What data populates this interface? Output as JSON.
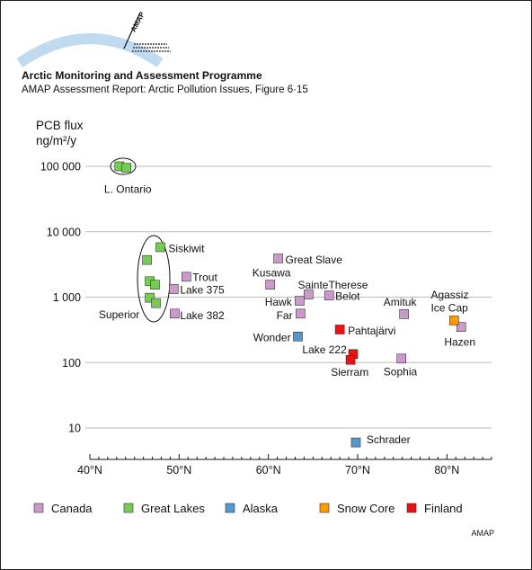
{
  "header": {
    "title": "Arctic Monitoring and Assessment Programme",
    "subtitle": "AMAP Assessment Report: Arctic Pollution Issues, Figure 6·15",
    "logo_text": "AMAP"
  },
  "footer": {
    "credit": "AMAP"
  },
  "chart_data": {
    "type": "scatter",
    "title": "",
    "ylabel_line1": "PCB flux",
    "ylabel_line2": "ng/m²/y",
    "xlabel": "",
    "x_scale": "linear",
    "y_scale": "log",
    "xlim": [
      40,
      85
    ],
    "ylim": [
      5,
      100000
    ],
    "grid": "horizontal",
    "legend_position": "bottom",
    "x_ticks": [
      {
        "v": 40,
        "label": "40°N"
      },
      {
        "v": 50,
        "label": "50°N"
      },
      {
        "v": 60,
        "label": "60°N"
      },
      {
        "v": 70,
        "label": "70°N"
      },
      {
        "v": 80,
        "label": "80°N"
      }
    ],
    "y_ticks": [
      {
        "v": 10,
        "label": "10"
      },
      {
        "v": 100,
        "label": "100"
      },
      {
        "v": 1000,
        "label": "1 000"
      },
      {
        "v": 10000,
        "label": "10 000"
      },
      {
        "v": 100000,
        "label": "100 000"
      }
    ],
    "legend": [
      {
        "key": "canada",
        "label": "Canada"
      },
      {
        "key": "greatlakes",
        "label": "Great Lakes"
      },
      {
        "key": "alaska",
        "label": "Alaska"
      },
      {
        "key": "snowcore",
        "label": "Snow Core"
      },
      {
        "key": "finland",
        "label": "Finland"
      }
    ],
    "colors": {
      "canada": "#cc99cc",
      "greatlakes": "#77cc55",
      "alaska": "#5599cc",
      "snowcore": "#ff9900",
      "finland": "#ee1111"
    },
    "series": [
      {
        "key": "greatlakes",
        "points": [
          {
            "x": 43.3,
            "y": 100000
          },
          {
            "x": 44.1,
            "y": 95000
          },
          {
            "x": 47.9,
            "y": 5800
          },
          {
            "x": 46.4,
            "y": 3700
          },
          {
            "x": 46.7,
            "y": 1750
          },
          {
            "x": 47.3,
            "y": 1550
          },
          {
            "x": 46.7,
            "y": 980
          },
          {
            "x": 47.4,
            "y": 810
          }
        ]
      },
      {
        "key": "canada",
        "points": [
          {
            "x": 61.1,
            "y": 3900
          },
          {
            "x": 60.2,
            "y": 1550
          },
          {
            "x": 50.8,
            "y": 2050
          },
          {
            "x": 49.4,
            "y": 1330
          },
          {
            "x": 64.5,
            "y": 1100
          },
          {
            "x": 63.5,
            "y": 880
          },
          {
            "x": 66.8,
            "y": 1060
          },
          {
            "x": 63.6,
            "y": 560
          },
          {
            "x": 49.5,
            "y": 560
          },
          {
            "x": 75.2,
            "y": 550
          },
          {
            "x": 81.6,
            "y": 350
          },
          {
            "x": 74.9,
            "y": 115
          }
        ]
      },
      {
        "key": "alaska",
        "points": [
          {
            "x": 63.3,
            "y": 250
          },
          {
            "x": 69.8,
            "y": 6
          }
        ]
      },
      {
        "key": "snowcore",
        "points": [
          {
            "x": 80.8,
            "y": 440
          }
        ]
      },
      {
        "key": "finland",
        "points": [
          {
            "x": 68.0,
            "y": 320
          },
          {
            "x": 69.5,
            "y": 135
          },
          {
            "x": 69.2,
            "y": 110
          }
        ]
      }
    ],
    "annotations": [
      {
        "text": "L. Ontario",
        "x": 41.6,
        "y": 45000
      },
      {
        "text": "Siskiwit",
        "x": 48.8,
        "y": 5600
      },
      {
        "text": "Trout",
        "x": 51.5,
        "y": 2050
      },
      {
        "text": "Lake 375",
        "x": 50.1,
        "y": 1300
      },
      {
        "text": "Superior",
        "x": 41.0,
        "y": 550
      },
      {
        "text": "Lake 382",
        "x": 50.1,
        "y": 530
      },
      {
        "text": "Great Slave",
        "x": 61.9,
        "y": 3800
      },
      {
        "text": "Kusawa",
        "x": 58.2,
        "y": 2400
      },
      {
        "text": "SainteTherese",
        "x": 63.3,
        "y": 1550
      },
      {
        "text": "Hawk",
        "x": 59.6,
        "y": 850
      },
      {
        "text": "Belot",
        "x": 67.5,
        "y": 1050
      },
      {
        "text": "Far",
        "x": 60.9,
        "y": 530
      },
      {
        "text": "Wonder",
        "x": 58.3,
        "y": 245
      },
      {
        "text": "Pahtajärvi",
        "x": 68.9,
        "y": 310
      },
      {
        "text": "Lake 222",
        "x": 63.8,
        "y": 160
      },
      {
        "text": "Sierram",
        "x": 67.0,
        "y": 72
      },
      {
        "text": "Amituk",
        "x": 72.9,
        "y": 860
      },
      {
        "text": "Sophia",
        "x": 72.9,
        "y": 73
      },
      {
        "text": "Agassiz",
        "x": 78.2,
        "y": 1100
      },
      {
        "text": "Ice Cap",
        "x": 78.2,
        "y": 700
      },
      {
        "text": "Hazen",
        "x": 79.7,
        "y": 210
      },
      {
        "text": "Schrader",
        "x": 71.0,
        "y": 6.7
      }
    ]
  }
}
